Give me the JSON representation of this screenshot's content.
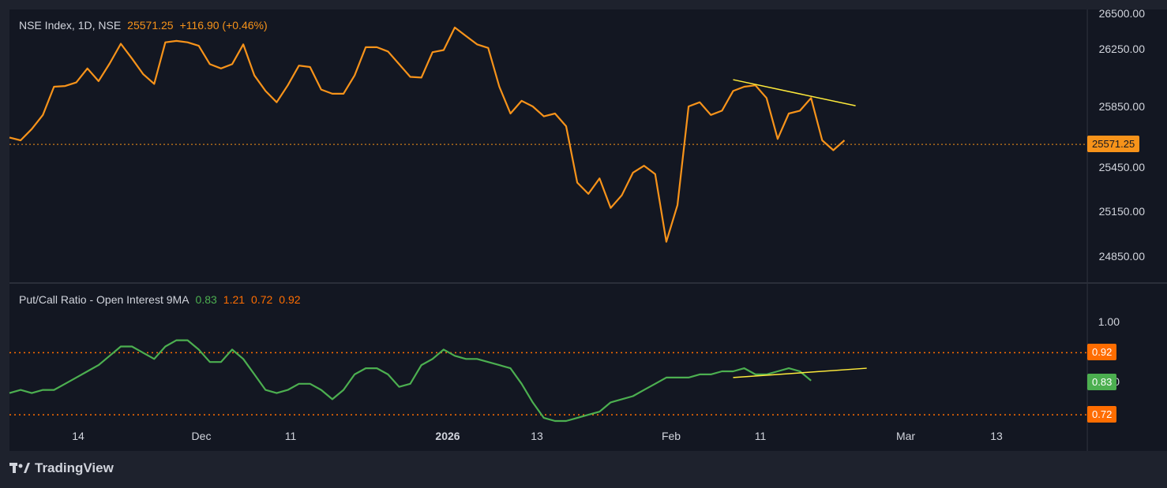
{
  "header": {
    "symbol": "NSE Index, 1D, NSE",
    "price": "25571.25",
    "change": "+116.90 (+0.46%)"
  },
  "indicator": {
    "name": "Put/Call Ratio - Open Interest 9MA",
    "values": [
      "0.83",
      "1.21",
      "0.72",
      "0.92"
    ]
  },
  "price_axis": {
    "ticks": [
      "26500.00",
      "26250.00",
      "25850.00",
      "25450.00",
      "25150.00",
      "24850.00"
    ],
    "current_label": "25571.25"
  },
  "pcr_axis": {
    "ticks": [
      "1.00",
      "0.80"
    ],
    "upper_label": "0.92",
    "current_label": "0.83",
    "lower_label": "0.72"
  },
  "time_axis": {
    "labels": [
      "14",
      "Dec",
      "11",
      "2026",
      "13",
      "Feb",
      "11",
      "Mar",
      "13"
    ]
  },
  "branding": {
    "name": "TradingView"
  },
  "colors": {
    "background": "#1e222d",
    "pane": "#131722",
    "price_line": "#f7931a",
    "pcr_line": "#4caf50",
    "trendline": "#ffeb3b",
    "level_line": "#ff6d00"
  },
  "chart_data": [
    {
      "type": "line",
      "title": "NSE Index, 1D, NSE",
      "series": [
        {
          "name": "NSE Index",
          "values": [
            25620,
            25600,
            25680,
            25780,
            25980,
            25985,
            26010,
            26110,
            26020,
            26145,
            26285,
            26180,
            26070,
            26000,
            26295,
            26305,
            26295,
            26270,
            26140,
            26110,
            26140,
            26280,
            26060,
            25950,
            25870,
            25990,
            26130,
            26120,
            25960,
            25930,
            25930,
            26060,
            26260,
            26260,
            26230,
            26140,
            26050,
            26045,
            26225,
            26240,
            26400,
            26340,
            26280,
            26255,
            25980,
            25790,
            25880,
            25840,
            25770,
            25790,
            25700,
            25300,
            25220,
            25330,
            25120,
            25210,
            25370,
            25420,
            25360,
            24880,
            25140,
            25840,
            25870,
            25780,
            25810,
            25950,
            25980,
            25990,
            25900,
            25610,
            25790,
            25810,
            25900,
            25600,
            25530,
            25600
          ]
        }
      ],
      "ylim": [
        24750,
        26500
      ],
      "current": 25571.25,
      "trendline": [
        [
          65,
          26030
        ],
        [
          76,
          25845
        ]
      ]
    },
    {
      "type": "line",
      "title": "Put/Call Ratio - Open Interest 9MA",
      "series": [
        {
          "name": "Put/Call Ratio - Open Interest 9MA",
          "values": [
            0.79,
            0.8,
            0.79,
            0.8,
            0.8,
            0.82,
            0.84,
            0.86,
            0.88,
            0.91,
            0.94,
            0.94,
            0.92,
            0.9,
            0.94,
            0.96,
            0.96,
            0.93,
            0.89,
            0.89,
            0.93,
            0.9,
            0.85,
            0.8,
            0.79,
            0.8,
            0.82,
            0.82,
            0.8,
            0.77,
            0.8,
            0.85,
            0.87,
            0.87,
            0.85,
            0.81,
            0.82,
            0.88,
            0.9,
            0.93,
            0.91,
            0.9,
            0.9,
            0.89,
            0.88,
            0.87,
            0.82,
            0.76,
            0.71,
            0.7,
            0.7,
            0.71,
            0.72,
            0.73,
            0.76,
            0.77,
            0.78,
            0.8,
            0.82,
            0.84,
            0.84,
            0.84,
            0.85,
            0.85,
            0.86,
            0.86,
            0.87,
            0.85,
            0.85,
            0.86,
            0.87,
            0.86,
            0.83
          ]
        }
      ],
      "ylim": [
        0.7,
        1.02
      ],
      "levels": [
        0.92,
        0.72
      ],
      "trendline": [
        [
          65,
          0.84
        ],
        [
          77,
          0.87
        ]
      ]
    }
  ]
}
